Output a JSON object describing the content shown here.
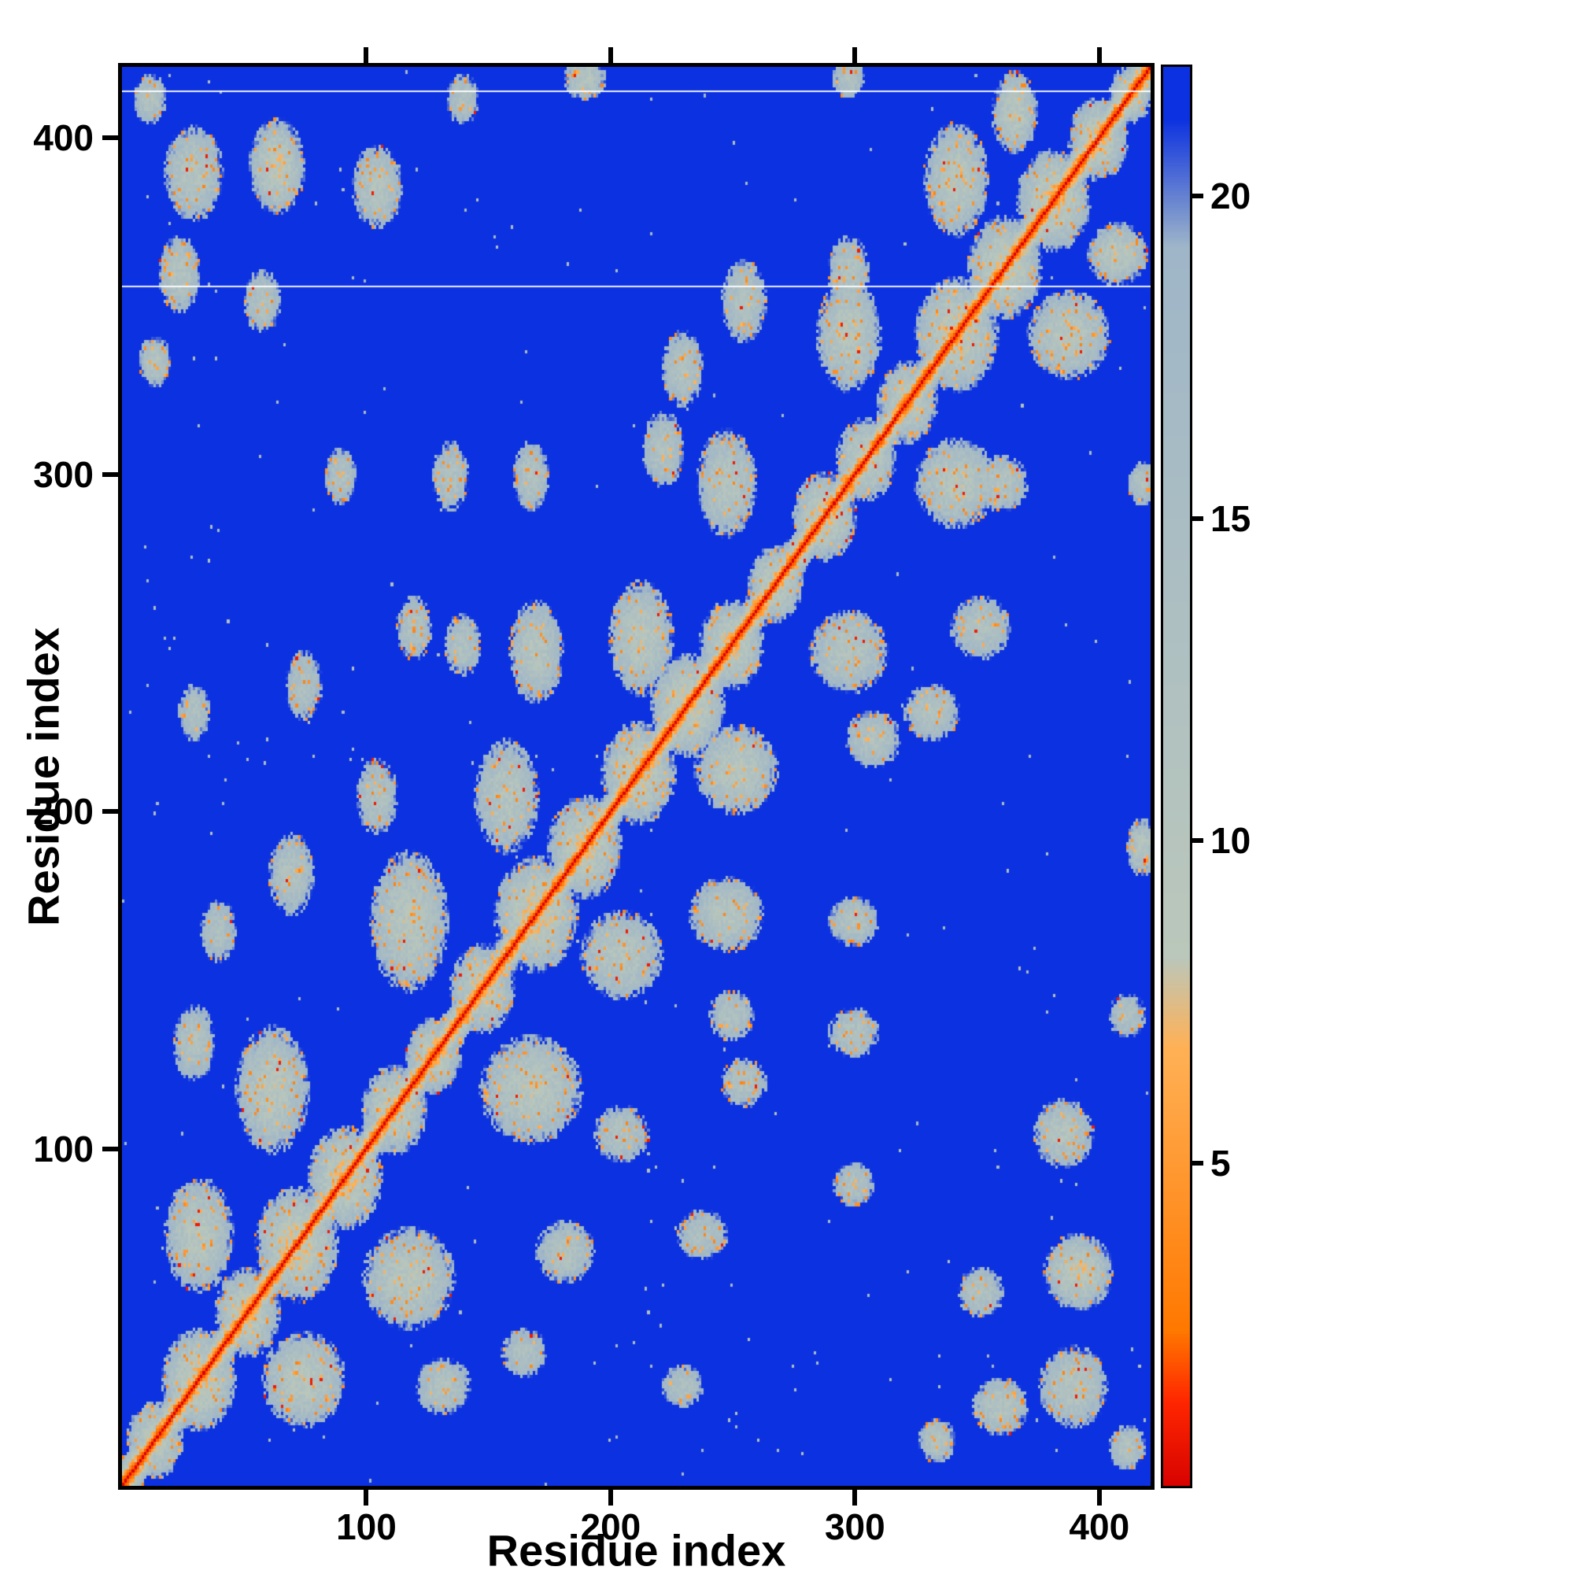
{
  "figure": {
    "background": "#ffffff"
  },
  "chart_data": {
    "type": "heatmap",
    "title": "",
    "xlabel": "Residue index",
    "ylabel": "Residue index",
    "x_range": [
      0,
      421
    ],
    "y_range": [
      0,
      421
    ],
    "x_ticks": [
      "100",
      "200",
      "300",
      "400"
    ],
    "y_ticks": [
      "100",
      "200",
      "300",
      "400"
    ],
    "n_residues": 421,
    "colorbar": {
      "ticks": [
        "5",
        "10",
        "15",
        "20"
      ],
      "range": [
        0,
        22
      ],
      "orientation": "vertical"
    },
    "colormap": {
      "description": "pairwise residue distance map: red = 0 (contact/diagonal), orange ~2-7, pale gray-green ~8-19, blue > 21 (far, clipped background)",
      "stops": [
        [
          0,
          "#d80300"
        ],
        [
          1.3,
          "#ff2600"
        ],
        [
          2.4,
          "#ff7800"
        ],
        [
          6.8,
          "#ffb156"
        ],
        [
          8.2,
          "#bac7bb"
        ],
        [
          19.2,
          "#9fb6c8"
        ],
        [
          21.2,
          "#0c31e0"
        ],
        [
          22,
          "#0c31e0"
        ]
      ]
    },
    "diag_band_slope": 2.6,
    "missing_residue_lines": [
      356,
      414
    ],
    "domains": [
      [
        14,
        12,
        9
      ],
      [
        32,
        16,
        8
      ],
      [
        52,
        14,
        8.5
      ],
      [
        72,
        18,
        8
      ],
      [
        92,
        16,
        8
      ],
      [
        112,
        14,
        8.5
      ],
      [
        128,
        12,
        9
      ],
      [
        148,
        14,
        9
      ],
      [
        170,
        18,
        8
      ],
      [
        190,
        16,
        8.5
      ],
      [
        212,
        16,
        8.5
      ],
      [
        232,
        16,
        8
      ],
      [
        250,
        14,
        8.5
      ],
      [
        268,
        12,
        9
      ],
      [
        288,
        14,
        8.5
      ],
      [
        305,
        13,
        9
      ],
      [
        322,
        13,
        9
      ],
      [
        342,
        18,
        8
      ],
      [
        362,
        16,
        8
      ],
      [
        382,
        16,
        8
      ],
      [
        400,
        13,
        8.5
      ],
      [
        413,
        9,
        9
      ]
    ],
    "contacts": [
      [
        75,
        32,
        18,
        15,
        10
      ],
      [
        118,
        62,
        20,
        16,
        10
      ],
      [
        132,
        30,
        12,
        9,
        12
      ],
      [
        168,
        118,
        22,
        17,
        10
      ],
      [
        182,
        70,
        13,
        10,
        12
      ],
      [
        205,
        158,
        18,
        14,
        11
      ],
      [
        205,
        105,
        12,
        9,
        12
      ],
      [
        238,
        75,
        11,
        8,
        12.5
      ],
      [
        248,
        170,
        16,
        12,
        11
      ],
      [
        252,
        213,
        18,
        14,
        10
      ],
      [
        255,
        120,
        10,
        8,
        12.5
      ],
      [
        298,
        248,
        17,
        13,
        11
      ],
      [
        300,
        135,
        11,
        8,
        12.5
      ],
      [
        300,
        90,
        9,
        7,
        12.5
      ],
      [
        300,
        168,
        11,
        8,
        12
      ],
      [
        308,
        222,
        12,
        9,
        12
      ],
      [
        332,
        230,
        12,
        9,
        11.5
      ],
      [
        342,
        298,
        18,
        14,
        10
      ],
      [
        352,
        255,
        13,
        10,
        12
      ],
      [
        360,
        298,
        12,
        9,
        11.5
      ],
      [
        388,
        342,
        18,
        14,
        10
      ],
      [
        408,
        366,
        13,
        10,
        10
      ],
      [
        390,
        30,
        15,
        13,
        11
      ],
      [
        392,
        64,
        15,
        12,
        9
      ],
      [
        386,
        105,
        13,
        11,
        11
      ],
      [
        360,
        24,
        12,
        9,
        11
      ],
      [
        334,
        14,
        8,
        7,
        11
      ],
      [
        352,
        58,
        10,
        8,
        12
      ],
      [
        412,
        12,
        8,
        7,
        11.5
      ],
      [
        418,
        190,
        7,
        9,
        11
      ],
      [
        418,
        298,
        6,
        7,
        12
      ],
      [
        412,
        140,
        8,
        7,
        12.5
      ],
      [
        230,
        30,
        9,
        7,
        13
      ],
      [
        165,
        40,
        10,
        8,
        13
      ],
      [
        250,
        140,
        10,
        8,
        12.5
      ]
    ],
    "noise": {
      "seed": 7,
      "amp": 5.5,
      "speckle_orange_p": 0.07,
      "speckle_red_p": 0.005,
      "blue_speck_p": 0.0015
    }
  }
}
